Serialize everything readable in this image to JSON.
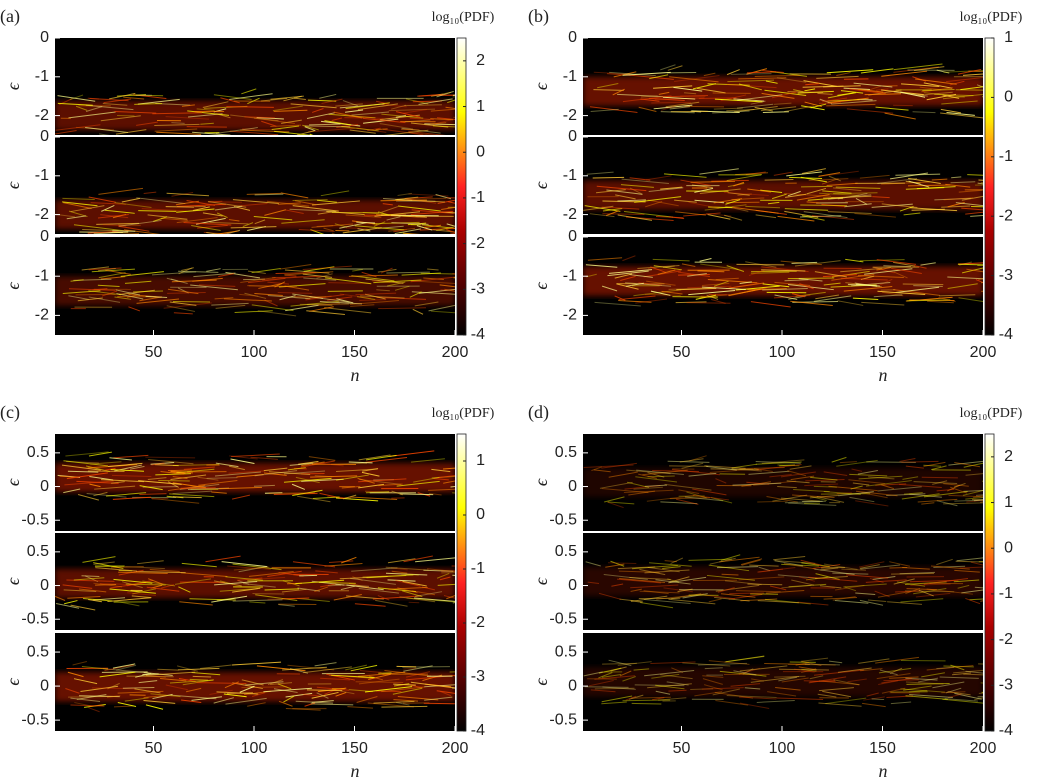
{
  "panels": [
    {
      "label": "(a)",
      "xlabel": "n",
      "xlim": [
        1,
        200
      ],
      "xticks": [
        50,
        100,
        150,
        200
      ],
      "colorbar": {
        "label": "log₁₀(PDF)",
        "lim": [
          -4,
          2.5
        ],
        "ticks": [
          2,
          1,
          0,
          -1,
          -2,
          -3,
          -4
        ]
      },
      "subplots": [
        {
          "ylabel": "ϵ",
          "ylim": [
            -2.5,
            0
          ],
          "yticks": [
            0,
            -1,
            -2
          ]
        },
        {
          "ylabel": "ϵ",
          "ylim": [
            -2.5,
            0
          ],
          "yticks": [
            0,
            -1,
            -2
          ]
        },
        {
          "ylabel": "ϵ",
          "ylim": [
            -2.5,
            0
          ],
          "yticks": [
            0,
            -1,
            -2
          ]
        }
      ]
    },
    {
      "label": "(b)",
      "xlabel": "n",
      "xlim": [
        1,
        200
      ],
      "xticks": [
        50,
        100,
        150,
        200
      ],
      "colorbar": {
        "label": "log₁₀(PDF)",
        "lim": [
          -4,
          1
        ],
        "ticks": [
          1,
          0,
          -1,
          -2,
          -3,
          -4
        ]
      },
      "subplots": [
        {
          "ylabel": "ϵ",
          "ylim": [
            -2.5,
            0
          ],
          "yticks": [
            0,
            -1,
            -2
          ]
        },
        {
          "ylabel": "ϵ",
          "ylim": [
            -2.5,
            0
          ],
          "yticks": [
            0,
            -1,
            -2
          ]
        },
        {
          "ylabel": "ϵ",
          "ylim": [
            -2.5,
            0
          ],
          "yticks": [
            0,
            -1,
            -2
          ]
        }
      ]
    },
    {
      "label": "(c)",
      "xlabel": "n",
      "xlim": [
        1,
        200
      ],
      "xticks": [
        50,
        100,
        150,
        200
      ],
      "colorbar": {
        "label": "log₁₀(PDF)",
        "lim": [
          -4,
          1.5
        ],
        "ticks": [
          1,
          0,
          -1,
          -2,
          -3,
          -4
        ]
      },
      "subplots": [
        {
          "ylabel": "ϵ",
          "ylim": [
            -0.66,
            0.78
          ],
          "yticks": [
            0.5,
            0,
            -0.5
          ]
        },
        {
          "ylabel": "ϵ",
          "ylim": [
            -0.66,
            0.78
          ],
          "yticks": [
            0.5,
            0,
            -0.5
          ]
        },
        {
          "ylabel": "ϵ",
          "ylim": [
            -0.66,
            0.78
          ],
          "yticks": [
            0.5,
            0,
            -0.5
          ]
        }
      ]
    },
    {
      "label": "(d)",
      "xlabel": "n",
      "xlim": [
        1,
        200
      ],
      "xticks": [
        50,
        100,
        150,
        200
      ],
      "colorbar": {
        "label": "log₁₀(PDF)",
        "lim": [
          -4,
          2.5
        ],
        "ticks": [
          2,
          1,
          0,
          -1,
          -2,
          -3,
          -4
        ]
      },
      "subplots": [
        {
          "ylabel": "ϵ",
          "ylim": [
            -0.66,
            0.78
          ],
          "yticks": [
            0.5,
            0,
            -0.5
          ]
        },
        {
          "ylabel": "ϵ",
          "ylim": [
            -0.66,
            0.78
          ],
          "yticks": [
            0.5,
            0,
            -0.5
          ]
        },
        {
          "ylabel": "ϵ",
          "ylim": [
            -0.66,
            0.78
          ],
          "yticks": [
            0.5,
            0,
            -0.5
          ]
        }
      ]
    }
  ]
}
